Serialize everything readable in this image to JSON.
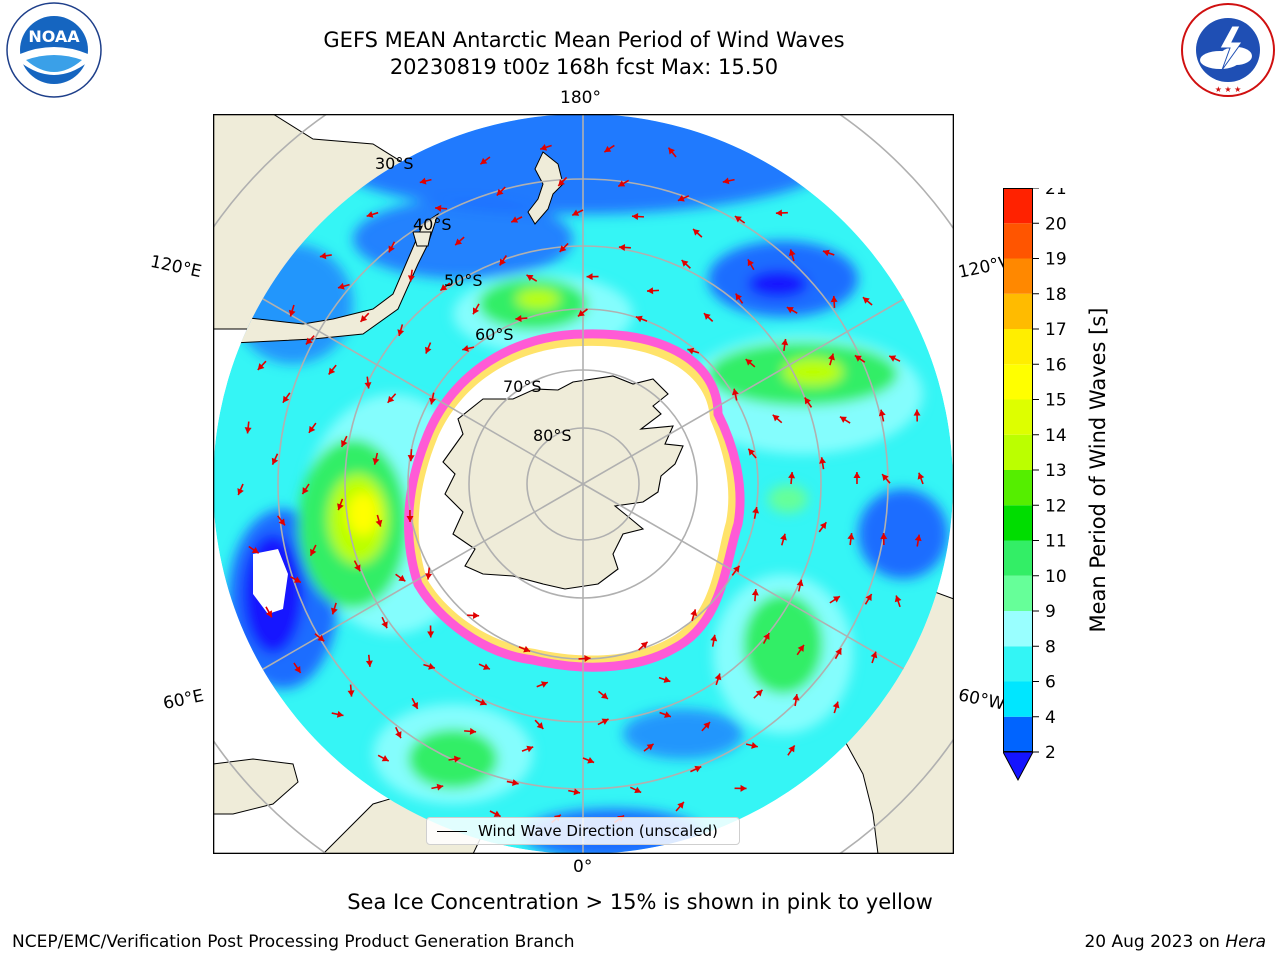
{
  "title": {
    "line1": "GEFS MEAN Antarctic Mean Period of Wind Waves",
    "line2": "20230819 t00z 168h fcst   Max: 15.50"
  },
  "logos": {
    "left": "NOAA",
    "left_ring": "NATIONAL OCEANIC AND ATMOSPHERIC ADMINISTRATION · U.S. DEPARTMENT OF COMMERCE",
    "right_ring": "NATIONAL WEATHER SERVICE"
  },
  "map": {
    "projection": "south-polar-stereographic",
    "longitude_labels": {
      "top": "180°",
      "bottom": "0°",
      "left_upper": "120°E",
      "left_lower": "60°E",
      "right_upper": "120°W",
      "right_lower": "60°W"
    },
    "latitude_labels": [
      "30°S",
      "40°S",
      "50°S",
      "60°S",
      "70°S",
      "80°S"
    ],
    "colors": {
      "land": "#efecd9",
      "ice_shelf": "#ffffff",
      "ocean_base": "#35f5f5",
      "grid": "#b0b0b0",
      "arrow": "#e00000",
      "sea_ice_pink": "#ff5ad6",
      "sea_ice_yellow": "#ffe36a"
    },
    "legend_label": "Wind Wave Direction (unscaled)"
  },
  "colorbar": {
    "label": "Mean Period of Wind Waves [s]",
    "ticks": [
      "2",
      "4",
      "6",
      "8",
      "9",
      "10",
      "11",
      "12",
      "13",
      "14",
      "15",
      "16",
      "17",
      "18",
      "19",
      "20",
      "21"
    ],
    "colors": [
      "#0064ff",
      "#00e6ff",
      "#33f5f5",
      "#99ffff",
      "#66ff99",
      "#33ee66",
      "#00dd00",
      "#55ee00",
      "#bbff00",
      "#ddff00",
      "#ffff00",
      "#ffee00",
      "#ffbb00",
      "#ff8800",
      "#ff5500",
      "#ff2200"
    ],
    "under_color": "#1414ff"
  },
  "annotation": "Sea Ice Concentration > 15% is shown in pink to yellow",
  "footer": {
    "left": "NCEP/EMC/Verification Post Processing Product Generation Branch",
    "right_prefix": "20 Aug 2023 on ",
    "right_machine": "Hera"
  }
}
